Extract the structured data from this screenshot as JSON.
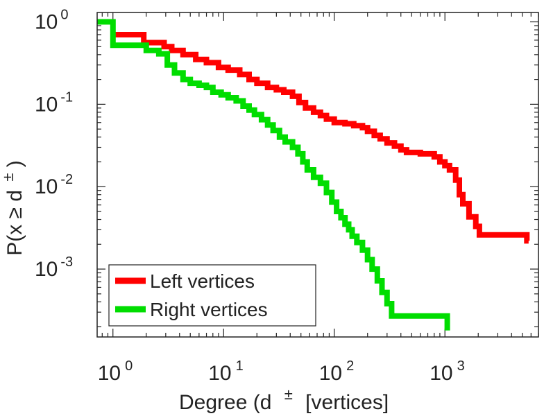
{
  "chart_data": {
    "type": "line",
    "scale": "log-log",
    "step": "stairs",
    "xlabel": "Degree (d ± ) [vertices]",
    "xlabel_main": "Degree (d",
    "xlabel_sup": "±",
    "xlabel_suffix": "[vertices]",
    "ylabel": "P(x ≥ d ± )",
    "ylabel_main": "P(x ≥ d",
    "ylabel_sup": "±",
    "ylabel_close": ")",
    "xlim": [
      0.72,
      7000
    ],
    "ylim": [
      0.00015,
      1.3
    ],
    "x_ticks": [
      {
        "value": 1,
        "base": "10",
        "exp": "0"
      },
      {
        "value": 10,
        "base": "10",
        "exp": "1"
      },
      {
        "value": 100,
        "base": "10",
        "exp": "2"
      },
      {
        "value": 1000,
        "base": "10",
        "exp": "3"
      }
    ],
    "y_ticks": [
      {
        "value": 1,
        "base": "10",
        "exp": "0"
      },
      {
        "value": 0.1,
        "base": "10",
        "exp": "-1"
      },
      {
        "value": 0.01,
        "base": "10",
        "exp": "-2"
      },
      {
        "value": 0.001,
        "base": "10",
        "exp": "-3"
      }
    ],
    "legend_position": "bottom-left",
    "series": [
      {
        "name": "Left vertices",
        "color": "#ff0000",
        "points": [
          [
            1,
            0.7
          ],
          [
            1.9,
            0.56
          ],
          [
            2.9,
            0.5
          ],
          [
            3.4,
            0.45
          ],
          [
            4.3,
            0.4
          ],
          [
            5.6,
            0.35
          ],
          [
            7,
            0.32
          ],
          [
            9,
            0.28
          ],
          [
            11,
            0.26
          ],
          [
            14,
            0.23
          ],
          [
            17,
            0.2
          ],
          [
            20,
            0.18
          ],
          [
            25,
            0.16
          ],
          [
            30,
            0.15
          ],
          [
            35,
            0.14
          ],
          [
            42,
            0.125
          ],
          [
            48,
            0.105
          ],
          [
            55,
            0.09
          ],
          [
            65,
            0.08
          ],
          [
            75,
            0.073
          ],
          [
            85,
            0.066
          ],
          [
            100,
            0.06
          ],
          [
            125,
            0.058
          ],
          [
            150,
            0.055
          ],
          [
            180,
            0.052
          ],
          [
            200,
            0.047
          ],
          [
            230,
            0.042
          ],
          [
            260,
            0.038
          ],
          [
            300,
            0.034
          ],
          [
            350,
            0.031
          ],
          [
            400,
            0.028
          ],
          [
            450,
            0.026
          ],
          [
            600,
            0.025
          ],
          [
            800,
            0.023
          ],
          [
            900,
            0.02
          ],
          [
            1000,
            0.018
          ],
          [
            1100,
            0.016
          ],
          [
            1250,
            0.012
          ],
          [
            1350,
            0.008
          ],
          [
            1450,
            0.0062
          ],
          [
            1650,
            0.0043
          ],
          [
            1900,
            0.0033
          ],
          [
            2050,
            0.0026
          ],
          [
            5500,
            0.0022
          ],
          [
            5700,
            0.0022
          ]
        ]
      },
      {
        "name": "Right vertices",
        "color": "#00dd00",
        "points": [
          [
            0.72,
            1.0
          ],
          [
            1,
            0.52
          ],
          [
            2,
            0.45
          ],
          [
            2.6,
            0.41
          ],
          [
            3.1,
            0.3
          ],
          [
            3.6,
            0.24
          ],
          [
            4.3,
            0.2
          ],
          [
            5,
            0.18
          ],
          [
            6,
            0.17
          ],
          [
            7,
            0.16
          ],
          [
            8,
            0.14
          ],
          [
            9.5,
            0.13
          ],
          [
            11,
            0.12
          ],
          [
            13,
            0.11
          ],
          [
            15,
            0.095
          ],
          [
            17,
            0.085
          ],
          [
            19,
            0.075
          ],
          [
            22,
            0.065
          ],
          [
            25,
            0.056
          ],
          [
            28,
            0.048
          ],
          [
            32,
            0.04
          ],
          [
            36,
            0.035
          ],
          [
            42,
            0.03
          ],
          [
            47,
            0.025
          ],
          [
            52,
            0.02
          ],
          [
            57,
            0.016
          ],
          [
            65,
            0.013
          ],
          [
            75,
            0.011
          ],
          [
            85,
            0.0085
          ],
          [
            95,
            0.0065
          ],
          [
            105,
            0.005
          ],
          [
            115,
            0.0042
          ],
          [
            125,
            0.0035
          ],
          [
            135,
            0.003
          ],
          [
            145,
            0.0025
          ],
          [
            160,
            0.0021
          ],
          [
            180,
            0.0017
          ],
          [
            200,
            0.0013
          ],
          [
            220,
            0.001
          ],
          [
            245,
            0.00072
          ],
          [
            270,
            0.00052
          ],
          [
            300,
            0.00038
          ],
          [
            330,
            0.00027
          ],
          [
            1050,
            0.00027
          ],
          [
            1050,
            0.00018
          ]
        ]
      }
    ]
  }
}
